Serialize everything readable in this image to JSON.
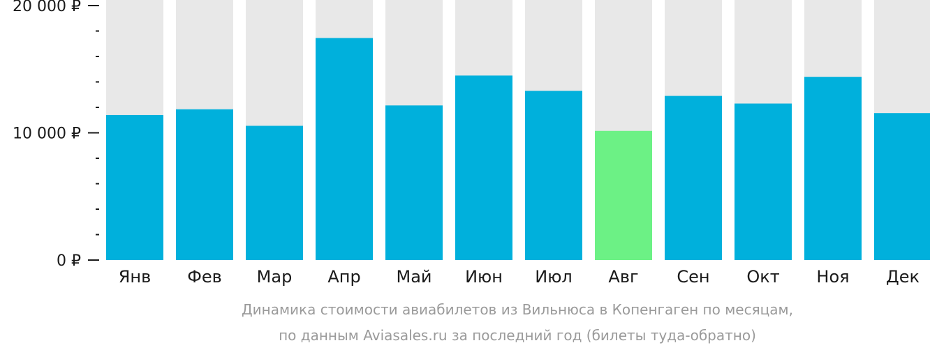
{
  "chart_data": {
    "type": "bar",
    "categories": [
      "Янв",
      "Фев",
      "Мар",
      "Апр",
      "Май",
      "Июн",
      "Июл",
      "Авг",
      "Сен",
      "Окт",
      "Ноя",
      "Дек"
    ],
    "values": [
      11400,
      11850,
      10550,
      17450,
      12150,
      14500,
      13300,
      10150,
      12900,
      12300,
      14400,
      11550
    ],
    "ylim": [
      0,
      20000
    ],
    "y_tick_labels": [
      "0 ₽",
      "10 000 ₽",
      "20 000 ₽"
    ],
    "y_tick_values": [
      0,
      10000,
      20000
    ],
    "minor_ticks_per_major": 4,
    "highlight_index": 7,
    "colors": {
      "bar": "#00b0dc",
      "highlight": "#6cf185",
      "background_bar": "#e8e8e8",
      "axis": "#1a1a1a"
    },
    "grid": false,
    "legend": "none"
  },
  "caption": {
    "line1": "Динамика стоимости авиабилетов из Вильнюса в Копенгаген по месяцам,",
    "line2": "по данным Aviasales.ru за последний год (билеты туда-обратно)"
  }
}
